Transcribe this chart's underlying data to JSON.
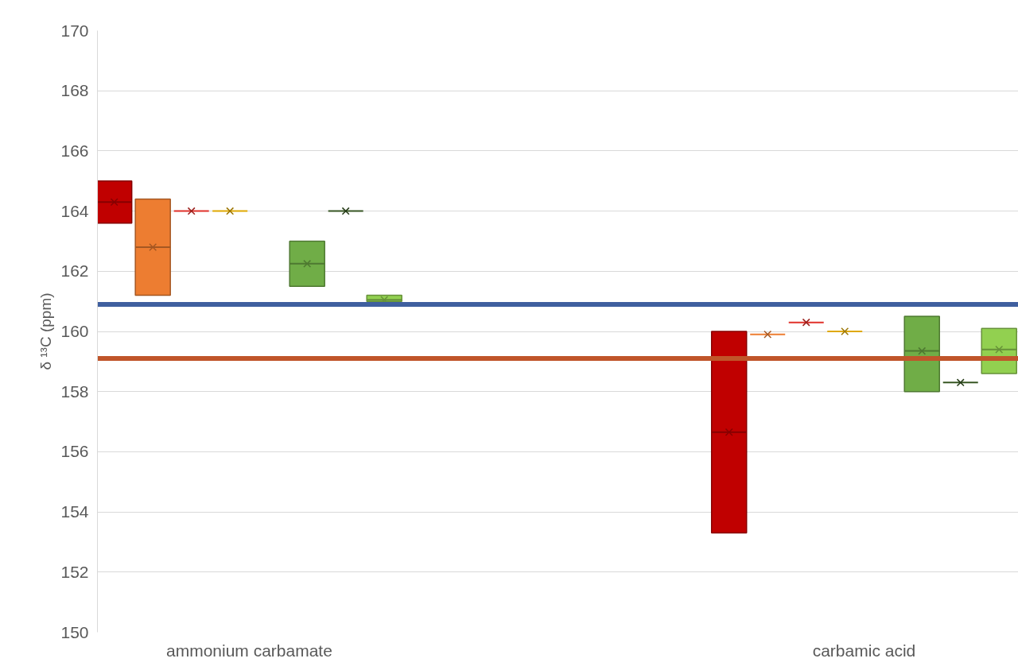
{
  "chart_data": {
    "type": "box",
    "ylabel": "δ ¹³C (ppm)",
    "categories": [
      "ammonium carbamate",
      "carbamic acid"
    ],
    "ylim": [
      150,
      170
    ],
    "yticks": [
      150,
      152,
      154,
      156,
      158,
      160,
      162,
      164,
      166,
      168,
      170
    ],
    "grid": "y",
    "series": [
      {
        "color": "#c00000",
        "boxes": [
          {
            "low": 163.6,
            "q1": 163.6,
            "median": 164.3,
            "q3": 165.0,
            "high": 165.0,
            "mean": 164.3
          },
          {
            "low": 153.3,
            "q1": 153.3,
            "median": 156.65,
            "q3": 160.0,
            "high": 160.0,
            "mean": 156.65
          }
        ]
      },
      {
        "color": "#ed7d31",
        "boxes": [
          {
            "low": 161.2,
            "q1": 161.2,
            "median": 162.8,
            "q3": 164.4,
            "high": 164.4,
            "mean": 162.8
          },
          {
            "low": 159.9,
            "q1": 159.9,
            "median": 159.9,
            "q3": 159.9,
            "high": 159.9,
            "mean": 159.9
          }
        ]
      },
      {
        "color": "#e0302a",
        "boxes": [
          {
            "low": 164.0,
            "q1": 164.0,
            "median": 164.0,
            "q3": 164.0,
            "high": 164.0,
            "mean": 164.0
          },
          {
            "low": 160.3,
            "q1": 160.3,
            "median": 160.3,
            "q3": 160.3,
            "high": 160.3,
            "mean": 160.3
          }
        ]
      },
      {
        "color": "#dfa800",
        "boxes": [
          {
            "low": 164.0,
            "q1": 164.0,
            "median": 164.0,
            "q3": 164.0,
            "high": 164.0,
            "mean": 164.0
          },
          {
            "low": 160.0,
            "q1": 160.0,
            "median": 160.0,
            "q3": 160.0,
            "high": 160.0,
            "mean": 160.0
          }
        ]
      },
      {
        "boxes": [
          null,
          null
        ]
      },
      {
        "color": "#70ad47",
        "boxes": [
          {
            "low": 161.5,
            "q1": 161.5,
            "median": 162.25,
            "q3": 163.0,
            "high": 163.0,
            "mean": 162.25
          },
          {
            "low": 158.0,
            "q1": 158.0,
            "median": 159.35,
            "q3": 160.5,
            "high": 160.5,
            "mean": 159.35
          }
        ]
      },
      {
        "color": "#375623",
        "boxes": [
          {
            "low": 164.0,
            "q1": 164.0,
            "median": 164.0,
            "q3": 164.0,
            "high": 164.0,
            "mean": 164.0
          },
          {
            "low": 158.3,
            "q1": 158.3,
            "median": 158.3,
            "q3": 158.3,
            "high": 158.3,
            "mean": 158.3
          }
        ]
      },
      {
        "color": "#92d050",
        "boxes": [
          {
            "low": 161.0,
            "q1": 161.0,
            "median": 161.05,
            "q3": 161.2,
            "high": 161.2,
            "mean": 161.05
          },
          {
            "low": 158.6,
            "q1": 158.6,
            "median": 159.4,
            "q3": 160.1,
            "high": 160.1,
            "mean": 159.4
          }
        ]
      }
    ],
    "ref_lines": [
      {
        "axis": "y",
        "value": 160.9,
        "color": "#3f5f9f"
      },
      {
        "axis": "y",
        "value": 159.1,
        "color": "#c0552a"
      }
    ]
  }
}
